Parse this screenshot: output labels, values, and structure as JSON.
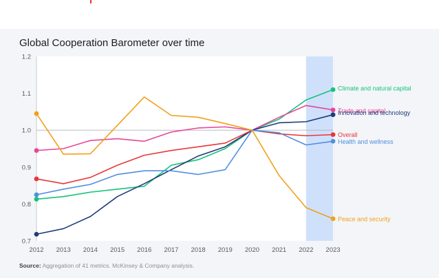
{
  "title": "Global Cooperation Barometer over time",
  "footer": {
    "source_label": "Source:",
    "source_text": "Aggregation of 41 metrics. McKinsey & Company analysis."
  },
  "chart_data": {
    "type": "line",
    "x": [
      "2012",
      "2013",
      "2014",
      "2015",
      "2016",
      "2017",
      "2018",
      "2019",
      "2020",
      "2021",
      "2022",
      "2023"
    ],
    "ylim": [
      0.7,
      1.2
    ],
    "yticks": [
      "0.7",
      "0.8",
      "0.9",
      "1.0",
      "1.1",
      "1.2"
    ],
    "highlight_range": [
      "2022",
      "2023"
    ],
    "reference_line": 1.0,
    "series": [
      {
        "name": "Climate and natural capital",
        "color": "#15c27a",
        "values": [
          0.813,
          0.82,
          0.832,
          0.84,
          0.848,
          0.905,
          0.92,
          0.95,
          1.0,
          1.03,
          1.082,
          1.11
        ]
      },
      {
        "name": "Trade and capital",
        "color": "#e8459b",
        "values": [
          0.945,
          0.95,
          0.972,
          0.977,
          0.97,
          0.995,
          1.006,
          1.009,
          1.0,
          1.035,
          1.067,
          1.055
        ]
      },
      {
        "name": "Innovation and technology",
        "color": "#1e3a78",
        "values": [
          0.718,
          0.733,
          0.766,
          0.82,
          0.855,
          0.893,
          0.93,
          0.955,
          1.0,
          1.02,
          1.023,
          1.042
        ]
      },
      {
        "name": "Overall",
        "color": "#e8363a",
        "values": [
          0.868,
          0.855,
          0.872,
          0.905,
          0.932,
          0.945,
          0.955,
          0.965,
          1.0,
          0.99,
          0.985,
          0.988
        ]
      },
      {
        "name": "Health and wellness",
        "color": "#4e8fe0",
        "values": [
          0.825,
          0.84,
          0.853,
          0.88,
          0.89,
          0.89,
          0.88,
          0.893,
          1.0,
          0.993,
          0.96,
          0.97
        ]
      },
      {
        "name": "Peace and security",
        "color": "#f0a11a",
        "values": [
          1.045,
          0.935,
          0.936,
          1.013,
          1.09,
          1.04,
          1.035,
          1.018,
          1.0,
          0.877,
          0.79,
          0.76
        ]
      }
    ]
  }
}
